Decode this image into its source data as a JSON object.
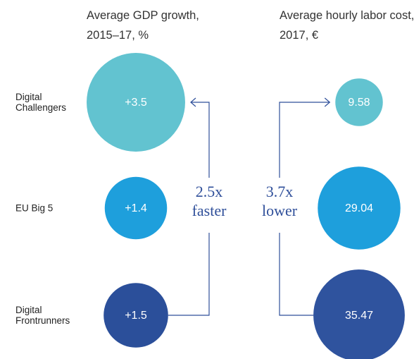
{
  "chart_data": {
    "type": "bubble",
    "categories": [
      "Digital Challengers",
      "EU Big 5",
      "Digital Frontrunners"
    ],
    "series": [
      {
        "name": "Average GDP growth, 2015–17, %",
        "values": [
          3.5,
          1.4,
          1.5
        ],
        "value_labels": [
          "+3.5",
          "+1.4",
          "+1.5"
        ],
        "colors": [
          "#62c3d0",
          "#1e9fdc",
          "#2b4f9a"
        ]
      },
      {
        "name": "Average hourly labor cost, 2017, €",
        "values": [
          9.58,
          29.04,
          35.47
        ],
        "colors": [
          "#62c3d0",
          "#1e9fdc",
          "#2f539e"
        ]
      }
    ],
    "annotations": [
      "2.5x faster",
      "3.7x lower"
    ]
  }
}
